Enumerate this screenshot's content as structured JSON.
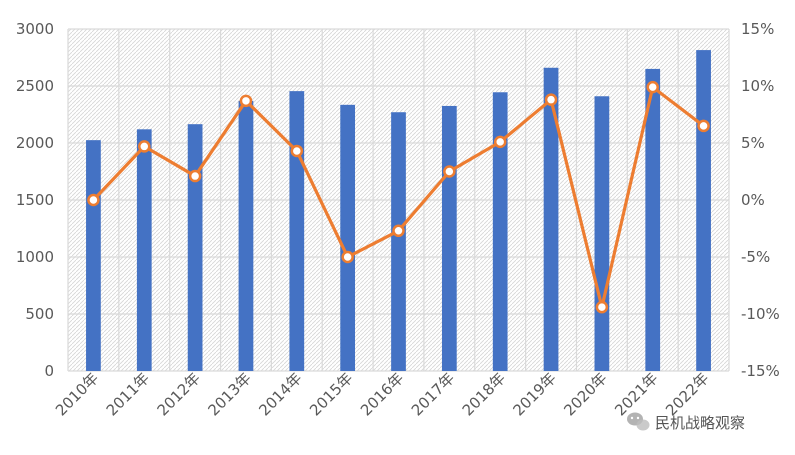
{
  "chart_data": {
    "type": "bar",
    "categories": [
      "2010年",
      "2011年",
      "2012年",
      "2013年",
      "2014年",
      "2015年",
      "2016年",
      "2017年",
      "2018年",
      "2019年",
      "2020年",
      "2021年",
      "2022年"
    ],
    "series": [
      {
        "type": "bar",
        "axis": "left",
        "values": [
          2025,
          2120,
          2165,
          2370,
          2455,
          2335,
          2270,
          2325,
          2445,
          2660,
          2410,
          2650,
          2815
        ]
      },
      {
        "type": "line",
        "axis": "right",
        "values": [
          0.0,
          4.7,
          2.1,
          8.7,
          4.3,
          -5.0,
          -2.7,
          2.5,
          5.1,
          8.8,
          -9.4,
          9.9,
          6.5
        ]
      }
    ],
    "ylim_left": [
      0,
      3000
    ],
    "ylim_right": [
      -15,
      15
    ],
    "yticks_left": [
      "0",
      "500",
      "1000",
      "1500",
      "2000",
      "2500",
      "3000"
    ],
    "yticks_right": [
      "-15%",
      "-10%",
      "-5%",
      "0%",
      "5%",
      "10%",
      "15%"
    ],
    "grid": true,
    "legend": "none",
    "colors": {
      "bar": "#4472C4",
      "line": "#ED7D31",
      "marker_fill": "#FFFFFF",
      "grid": "#D9D9D9",
      "hatch": "#D0D0D0"
    }
  },
  "watermark": {
    "icon": "wechat-icon",
    "text": "民机战略观察"
  }
}
